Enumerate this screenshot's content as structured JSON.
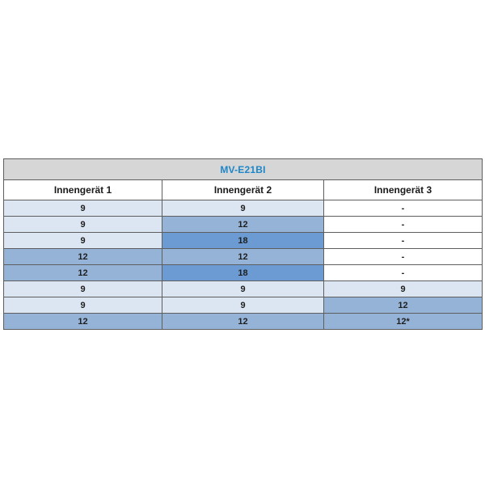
{
  "table": {
    "title": "MV-E21BI",
    "columns": [
      "Innengerät 1",
      "Innengerät 2",
      "Innengerät 3"
    ],
    "rows": [
      {
        "cells": [
          {
            "value": "9",
            "shade": "light"
          },
          {
            "value": "9",
            "shade": "light"
          },
          {
            "value": "-",
            "shade": "none"
          }
        ]
      },
      {
        "cells": [
          {
            "value": "9",
            "shade": "light"
          },
          {
            "value": "12",
            "shade": "medium"
          },
          {
            "value": "-",
            "shade": "none"
          }
        ]
      },
      {
        "cells": [
          {
            "value": "9",
            "shade": "light"
          },
          {
            "value": "18",
            "shade": "dark"
          },
          {
            "value": "-",
            "shade": "none"
          }
        ]
      },
      {
        "cells": [
          {
            "value": "12",
            "shade": "medium"
          },
          {
            "value": "12",
            "shade": "medium"
          },
          {
            "value": "-",
            "shade": "none"
          }
        ]
      },
      {
        "cells": [
          {
            "value": "12",
            "shade": "medium"
          },
          {
            "value": "18",
            "shade": "dark"
          },
          {
            "value": "-",
            "shade": "none"
          }
        ]
      },
      {
        "cells": [
          {
            "value": "9",
            "shade": "light"
          },
          {
            "value": "9",
            "shade": "light"
          },
          {
            "value": "9",
            "shade": "light"
          }
        ]
      },
      {
        "cells": [
          {
            "value": "9",
            "shade": "light"
          },
          {
            "value": "9",
            "shade": "light"
          },
          {
            "value": "12",
            "shade": "medium"
          }
        ]
      },
      {
        "cells": [
          {
            "value": "12",
            "shade": "medium"
          },
          {
            "value": "12",
            "shade": "medium"
          },
          {
            "value": "12*",
            "shade": "medium"
          }
        ]
      }
    ]
  },
  "colors": {
    "light": "#dce6f2",
    "medium": "#95b3d7",
    "dark": "#6b9bd2",
    "none": "#ffffff",
    "title_bg": "#d6d6d6",
    "title_text": "#1f86c7",
    "border": "#5e5e5e"
  }
}
